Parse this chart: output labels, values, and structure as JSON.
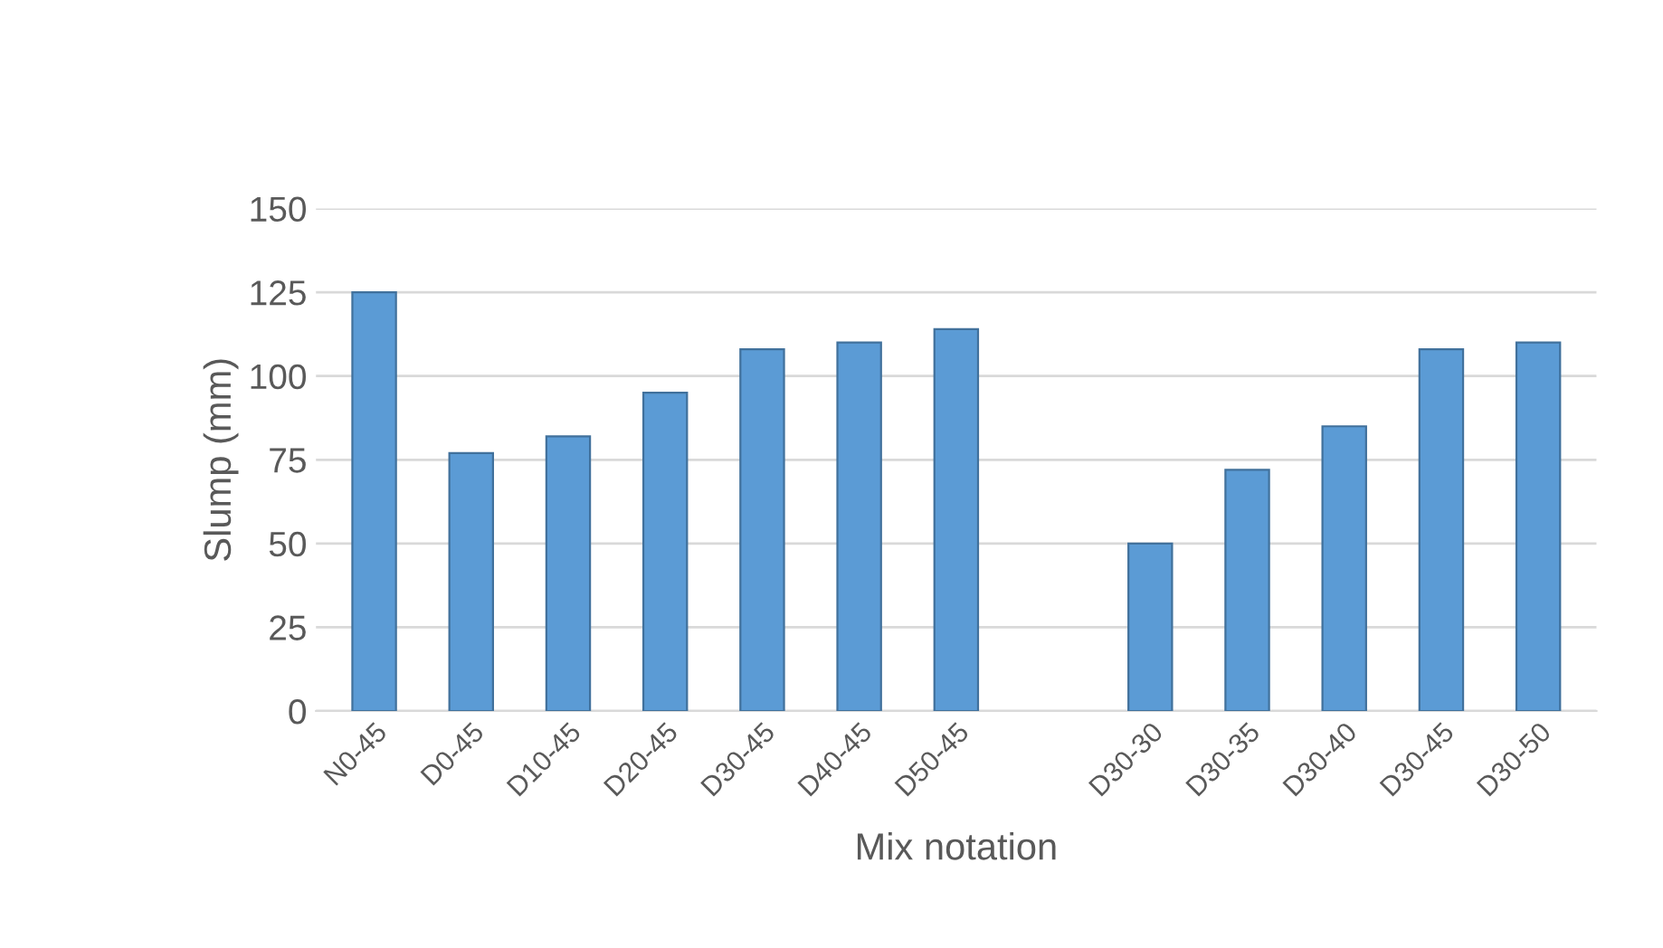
{
  "chart_data": {
    "type": "bar",
    "xlabel": "Mix notation",
    "ylabel": "Slump (mm)",
    "categories": [
      "N0-45",
      "D0-45",
      "D10-45",
      "D20-45",
      "D30-45",
      "D40-45",
      "D50-45",
      null,
      "D30-30",
      "D30-35",
      "D30-40",
      "D30-45",
      "D30-50"
    ],
    "values": [
      125,
      77,
      82,
      95,
      108,
      110,
      114,
      null,
      50,
      72,
      85,
      108,
      110
    ],
    "color": "#5b9bd5",
    "ylim": [
      0,
      150
    ],
    "yticks": [
      0,
      25,
      50,
      75,
      100,
      125,
      150
    ],
    "grid": "y",
    "legend": false
  }
}
